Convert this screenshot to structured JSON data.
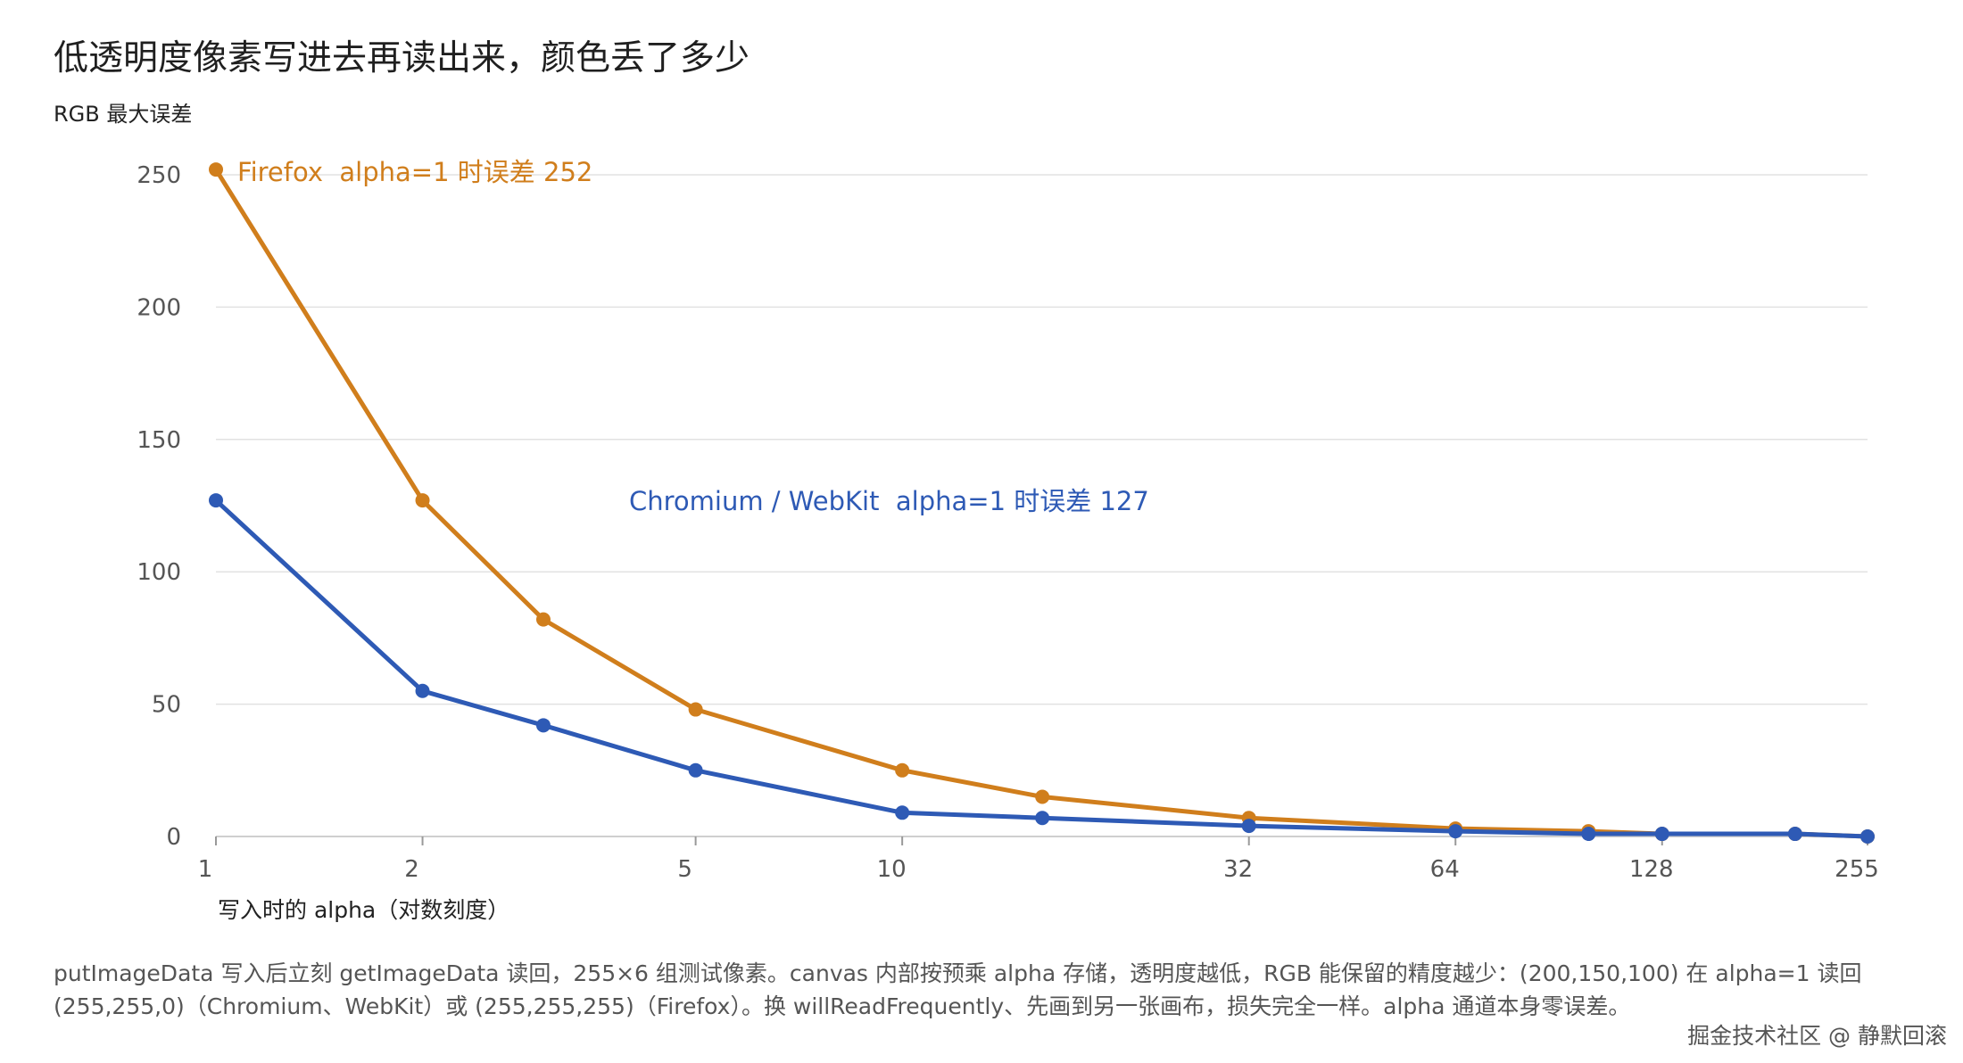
{
  "title": "低透明度像素写进去再读出来，颜色丢了多少",
  "caption": "putImageData 写入后立刻 getImageData 读回，255×6 组测试像素。canvas 内部按预乘 alpha 存储，透明度越低，RGB 能保留的精度越少：(200,150,100) 在 alpha=1 读回 (255,255,0)（Chromium、WebKit）或 (255,255,255)（Firefox）。换 willReadFrequently、先画到另一张画布，损失完全一样。alpha 通道本身零误差。",
  "watermark": "掘金技术社区 @ 静默回滚",
  "colors": {
    "firefox": "#D07E1C",
    "chromium": "#2E5AB5",
    "grid": "#e2e2e2",
    "axis": "#cfcfcf",
    "tick_text": "#555555"
  },
  "chart_data": {
    "type": "line",
    "xscale": "log",
    "xlabel": "写入时的 alpha（对数刻度）",
    "ylabel": "RGB 最大误差",
    "xlim": [
      1,
      255
    ],
    "ylim": [
      0,
      250
    ],
    "xticks": [
      1,
      2,
      5,
      10,
      32,
      64,
      128,
      255
    ],
    "yticks": [
      0,
      50,
      100,
      150,
      200,
      250
    ],
    "grid": true,
    "series": [
      {
        "name": "Firefox",
        "color": "#D07E1C",
        "x": [
          1,
          2,
          3,
          5,
          10,
          16,
          32,
          64,
          100,
          128,
          200,
          255
        ],
        "y": [
          252,
          127,
          82,
          48,
          25,
          15,
          7,
          3,
          2,
          1,
          1,
          0
        ]
      },
      {
        "name": "Chromium / WebKit",
        "color": "#2E5AB5",
        "x": [
          1,
          2,
          3,
          5,
          10,
          16,
          32,
          64,
          100,
          128,
          200,
          255
        ],
        "y": [
          127,
          55,
          42,
          25,
          9,
          7,
          4,
          2,
          1,
          1,
          1,
          0
        ]
      }
    ],
    "annotations": [
      {
        "series": "Firefox",
        "text": "Firefox  alpha=1 时误差 252"
      },
      {
        "series": "Chromium / WebKit",
        "text": "Chromium / WebKit  alpha=1 时误差 127"
      }
    ]
  }
}
